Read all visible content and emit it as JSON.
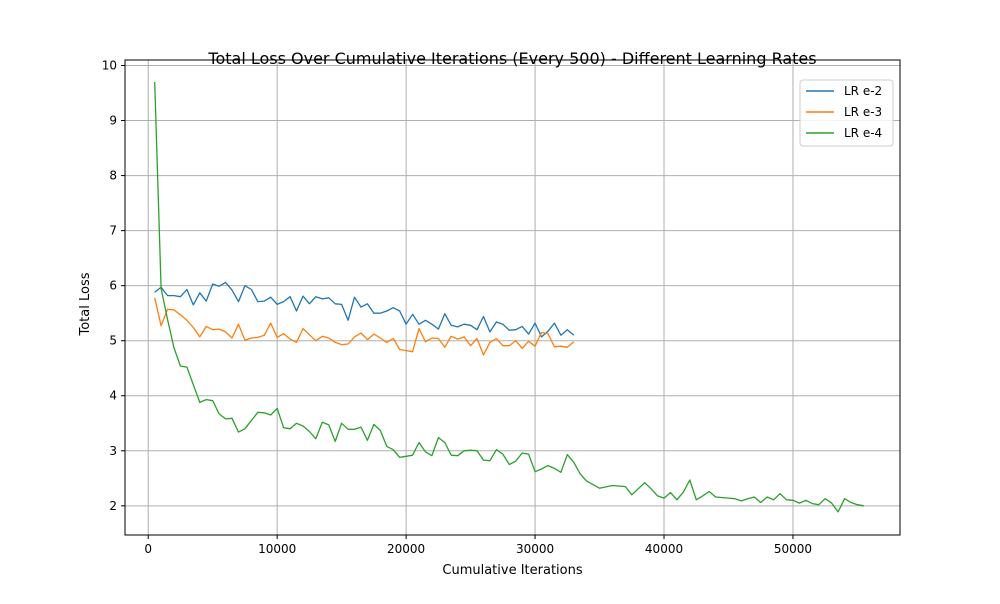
{
  "chart_data": {
    "type": "line",
    "title": "Total Loss Over Cumulative Iterations (Every 500) - Different Learning Rates",
    "xlabel": "Cumulative Iterations",
    "ylabel": "Total Loss",
    "xlim": [
      -1800,
      58300
    ],
    "ylim": [
      1.47,
      10.1
    ],
    "xticks": [
      0,
      10000,
      20000,
      30000,
      40000,
      50000
    ],
    "yticks": [
      2,
      3,
      4,
      5,
      6,
      7,
      8,
      9,
      10
    ],
    "grid": true,
    "legend_position": "top-right",
    "series": [
      {
        "name": "LR e-2",
        "color": "#1f77b4",
        "x": [
          500,
          1000,
          1500,
          2000,
          2500,
          3000,
          3500,
          4000,
          4500,
          5000,
          5500,
          6000,
          6500,
          7000,
          7500,
          8000,
          8500,
          9000,
          9500,
          10000,
          10500,
          11000,
          11500,
          12000,
          12500,
          13000,
          13500,
          14000,
          14500,
          15000,
          15500,
          16000,
          16500,
          17000,
          17500,
          18000,
          18500,
          19000,
          19500,
          20000,
          20500,
          21000,
          21500,
          22000,
          22500,
          23000,
          23500,
          24000,
          24500,
          25000,
          25500,
          26000,
          26500,
          27000,
          27500,
          28000,
          28500,
          29000,
          29500,
          30000,
          30500,
          31000,
          31500,
          32000,
          32500,
          33000
        ],
        "y": [
          5.88,
          5.97,
          5.82,
          5.82,
          5.8,
          5.93,
          5.65,
          5.87,
          5.72,
          6.03,
          5.99,
          6.06,
          5.92,
          5.71,
          6.0,
          5.93,
          5.71,
          5.72,
          5.79,
          5.66,
          5.71,
          5.8,
          5.54,
          5.81,
          5.67,
          5.8,
          5.76,
          5.78,
          5.67,
          5.66,
          5.37,
          5.79,
          5.61,
          5.67,
          5.5,
          5.5,
          5.54,
          5.6,
          5.54,
          5.3,
          5.48,
          5.3,
          5.37,
          5.3,
          5.21,
          5.49,
          5.28,
          5.25,
          5.3,
          5.28,
          5.2,
          5.44,
          5.16,
          5.34,
          5.3,
          5.19,
          5.2,
          5.26,
          5.12,
          5.32,
          5.07,
          5.17,
          5.32,
          5.1,
          5.2,
          5.1
        ]
      },
      {
        "name": "LR e-3",
        "color": "#ff7f0e",
        "x": [
          500,
          1000,
          1500,
          2000,
          2500,
          3000,
          3500,
          4000,
          4500,
          5000,
          5500,
          6000,
          6500,
          7000,
          7500,
          8000,
          8500,
          9000,
          9500,
          10000,
          10500,
          11000,
          11500,
          12000,
          12500,
          13000,
          13500,
          14000,
          14500,
          15000,
          15500,
          16000,
          16500,
          17000,
          17500,
          18000,
          18500,
          19000,
          19500,
          20000,
          20500,
          21000,
          21500,
          22000,
          22500,
          23000,
          23500,
          24000,
          24500,
          25000,
          25500,
          26000,
          26500,
          27000,
          27500,
          28000,
          28500,
          29000,
          29500,
          30000,
          30500,
          31000,
          31500,
          32000,
          32500,
          33000
        ],
        "y": [
          5.78,
          5.27,
          5.57,
          5.56,
          5.47,
          5.37,
          5.24,
          5.07,
          5.26,
          5.2,
          5.21,
          5.16,
          5.05,
          5.3,
          5.01,
          5.05,
          5.06,
          5.1,
          5.32,
          5.06,
          5.13,
          5.03,
          4.97,
          5.22,
          5.11,
          5.0,
          5.08,
          5.05,
          4.97,
          4.93,
          4.94,
          5.07,
          5.14,
          5.02,
          5.12,
          5.05,
          4.97,
          5.04,
          4.84,
          4.82,
          4.8,
          5.22,
          4.98,
          5.05,
          5.04,
          4.88,
          5.08,
          5.03,
          5.07,
          4.91,
          5.04,
          4.74,
          4.97,
          5.04,
          4.91,
          4.91,
          5.0,
          4.86,
          4.99,
          4.9,
          5.15,
          5.13,
          4.89,
          4.9,
          4.88,
          4.98
        ]
      },
      {
        "name": "LR e-4",
        "color": "#2ca02c",
        "x": [
          500,
          1000,
          1500,
          2000,
          2500,
          3000,
          3500,
          4000,
          4500,
          5000,
          5500,
          6000,
          6500,
          7000,
          7500,
          8000,
          8500,
          9000,
          9500,
          10000,
          10500,
          11000,
          11500,
          12000,
          12500,
          13000,
          13500,
          14000,
          14500,
          15000,
          15500,
          16000,
          16500,
          17000,
          17500,
          18000,
          18500,
          19000,
          19500,
          20000,
          20500,
          21000,
          21500,
          22000,
          22500,
          23000,
          23500,
          24000,
          24500,
          25000,
          25500,
          26000,
          26500,
          27000,
          27500,
          28000,
          28500,
          29000,
          29500,
          30000,
          30500,
          31000,
          31500,
          32000,
          32500,
          33000,
          33500,
          34000,
          35000,
          36000,
          37000,
          37500,
          38000,
          38500,
          39000,
          39500,
          40000,
          40500,
          41000,
          41500,
          42000,
          42500,
          43000,
          43500,
          44000,
          45000,
          45500,
          46000,
          46500,
          47000,
          47500,
          48000,
          48500,
          49000,
          49500,
          50000,
          50500,
          51000,
          51500,
          52000,
          52500,
          53000,
          53500,
          54000,
          54500,
          55000,
          55500
        ],
        "y": [
          9.7,
          5.95,
          5.38,
          4.87,
          4.54,
          4.52,
          4.2,
          3.88,
          3.93,
          3.91,
          3.67,
          3.58,
          3.59,
          3.34,
          3.4,
          3.55,
          3.7,
          3.69,
          3.65,
          3.77,
          3.42,
          3.4,
          3.5,
          3.45,
          3.35,
          3.22,
          3.52,
          3.47,
          3.17,
          3.5,
          3.39,
          3.39,
          3.43,
          3.19,
          3.48,
          3.37,
          3.08,
          3.02,
          2.88,
          2.9,
          2.92,
          3.15,
          2.98,
          2.91,
          3.24,
          3.15,
          2.92,
          2.91,
          3.0,
          3.01,
          3.0,
          2.83,
          2.82,
          3.02,
          2.94,
          2.75,
          2.81,
          2.96,
          2.94,
          2.62,
          2.67,
          2.73,
          2.68,
          2.61,
          2.93,
          2.79,
          2.58,
          2.45,
          2.32,
          2.37,
          2.35,
          2.2,
          2.31,
          2.42,
          2.31,
          2.18,
          2.14,
          2.24,
          2.11,
          2.25,
          2.47,
          2.11,
          2.18,
          2.26,
          2.16,
          2.14,
          2.13,
          2.09,
          2.13,
          2.16,
          2.06,
          2.16,
          2.11,
          2.22,
          2.11,
          2.1,
          2.05,
          2.1,
          2.04,
          2.02,
          2.13,
          2.05,
          1.89,
          2.13,
          2.06,
          2.02,
          2.0
        ]
      }
    ]
  }
}
